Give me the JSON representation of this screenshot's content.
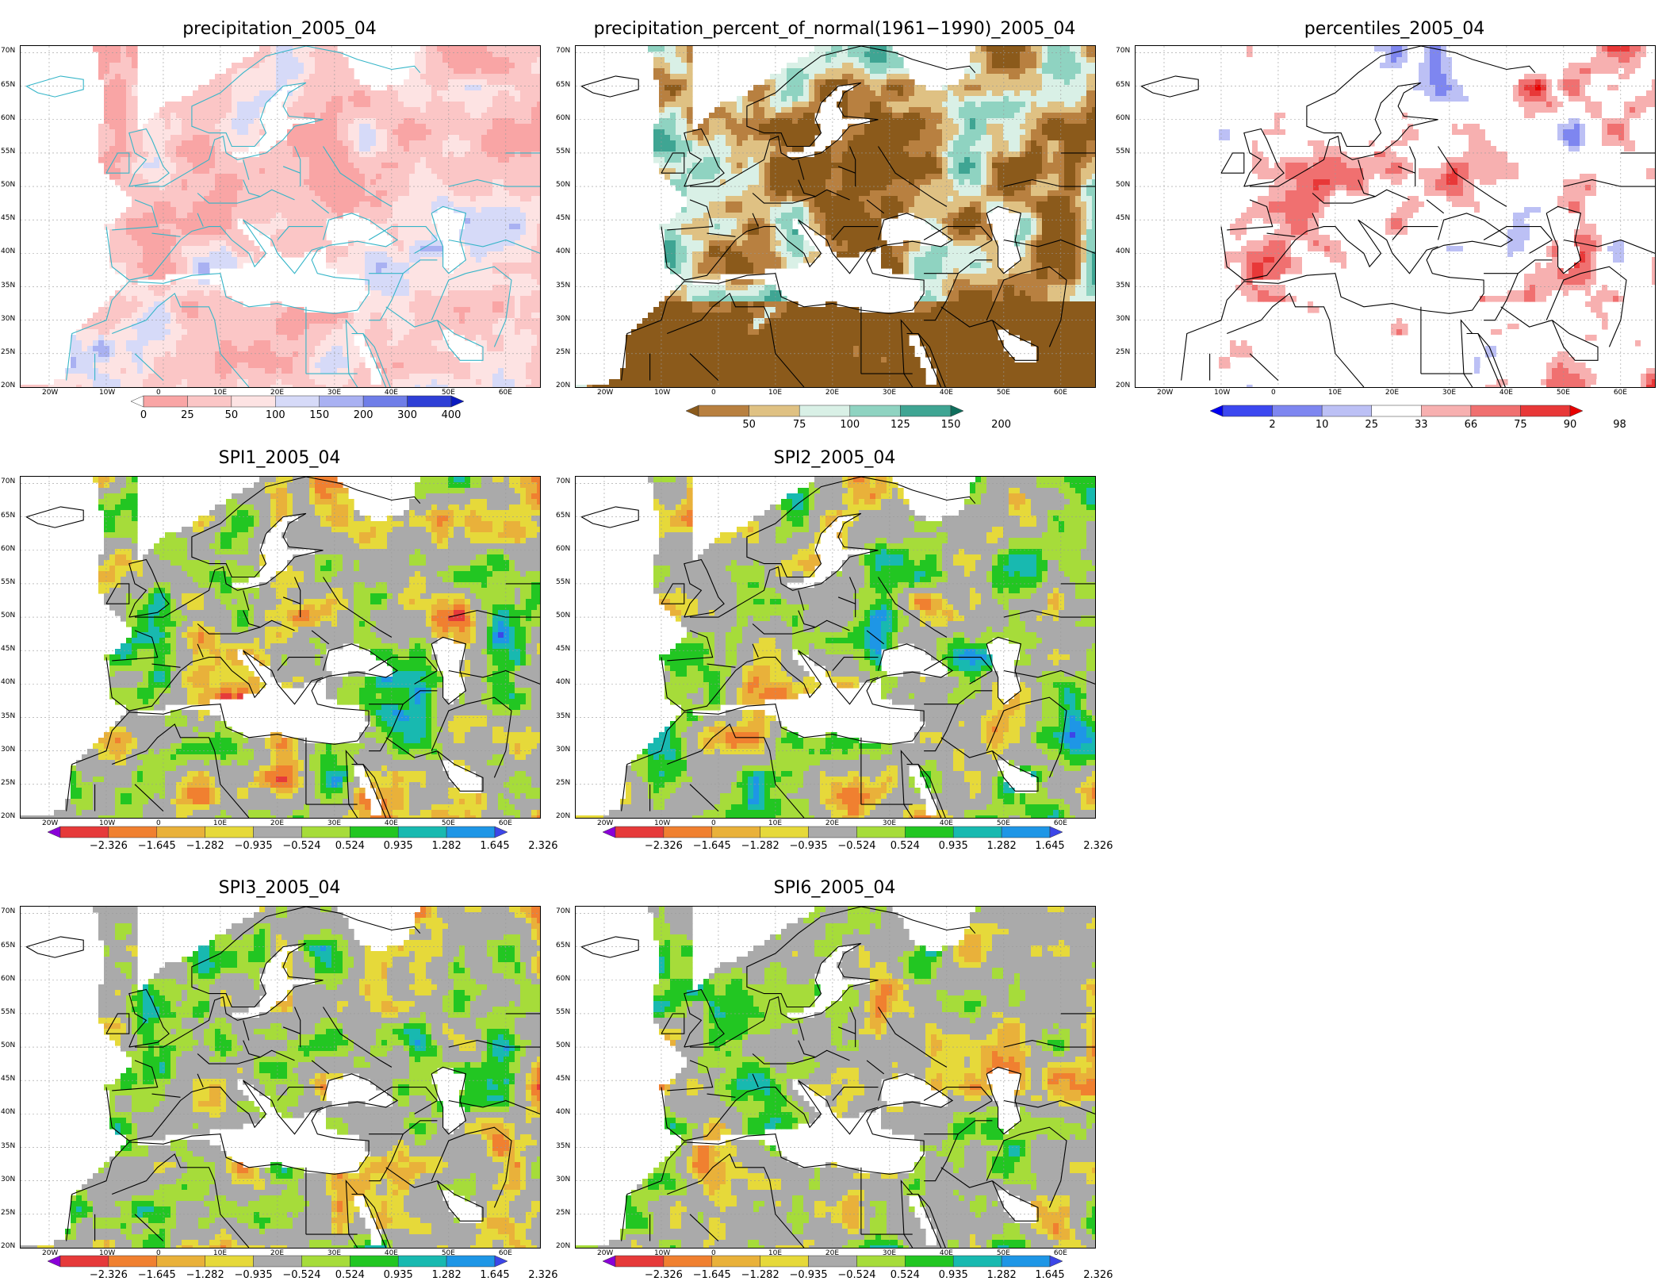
{
  "lat_labels": [
    "70N",
    "65N",
    "60N",
    "55N",
    "50N",
    "45N",
    "40N",
    "35N",
    "30N",
    "25N",
    "20N"
  ],
  "lon_labels": [
    "20W",
    "10W",
    "0",
    "10E",
    "20E",
    "30E",
    "40E",
    "50E",
    "60E"
  ],
  "panels": [
    {
      "id": "precipitation",
      "title": "precipitation_2005_04",
      "scheme": "precip",
      "legend": [
        "0",
        "25",
        "50",
        "100",
        "150",
        "200",
        "300",
        "400"
      ]
    },
    {
      "id": "percent-normal",
      "title": "precipitation_percent_of_normal(1961−1990)_2005_04",
      "scheme": "pct",
      "legend": [
        "50",
        "75",
        "100",
        "125",
        "150",
        "200"
      ]
    },
    {
      "id": "percentiles",
      "title": "percentiles_2005_04",
      "scheme": "perc",
      "legend": [
        "2",
        "10",
        "25",
        "33",
        "66",
        "75",
        "90",
        "98"
      ]
    },
    {
      "id": "spi1",
      "title": "SPI1_2005_04",
      "scheme": "spi",
      "legend": [
        "−2.326",
        "−1.645",
        "−1.282",
        "−0.935",
        "−0.524",
        "0.524",
        "0.935",
        "1.282",
        "1.645",
        "2.326"
      ]
    },
    {
      "id": "spi2",
      "title": "SPI2_2005_04",
      "scheme": "spi",
      "legend": [
        "−2.326",
        "−1.645",
        "−1.282",
        "−0.935",
        "−0.524",
        "0.524",
        "0.935",
        "1.282",
        "1.645",
        "2.326"
      ]
    },
    {
      "id": "spi3",
      "title": "SPI3_2005_04",
      "scheme": "spi",
      "legend": [
        "−2.326",
        "−1.645",
        "−1.282",
        "−0.935",
        "−0.524",
        "0.524",
        "0.935",
        "1.282",
        "1.645",
        "2.326"
      ]
    },
    {
      "id": "spi6",
      "title": "SPI6_2005_04",
      "scheme": "spi",
      "legend": [
        "−2.326",
        "−1.645",
        "−1.282",
        "−0.935",
        "−0.524",
        "0.524",
        "0.935",
        "1.282",
        "1.645",
        "2.326"
      ]
    }
  ],
  "colors": {
    "precip": [
      "#ffffff",
      "#f9a5a5",
      "#fbc6c6",
      "#fde3e3",
      "#d6daf8",
      "#a9b1f2",
      "#6f7ee8",
      "#2e3fd6",
      "#0a1ac0"
    ],
    "pct": [
      "#8b5a1b",
      "#b88040",
      "#dfc183",
      "#d9f0e6",
      "#8fd3c1",
      "#3fa593",
      "#0f6e5c"
    ],
    "perc": [
      "#0000f0",
      "#3c48f0",
      "#7e86f0",
      "#bcc0f5",
      "#ffffff",
      "#f7b0b0",
      "#f07070",
      "#e83838",
      "#e80000"
    ],
    "spi": [
      "#8a00d8",
      "#e63a3a",
      "#f08030",
      "#e9b13a",
      "#e6d93a",
      "#aaaaaa",
      "#a6dc3a",
      "#22c622",
      "#18b9b0",
      "#1e96e6",
      "#3c46e8"
    ],
    "coast": "#000000",
    "coast_precip": "#35b5c8"
  }
}
